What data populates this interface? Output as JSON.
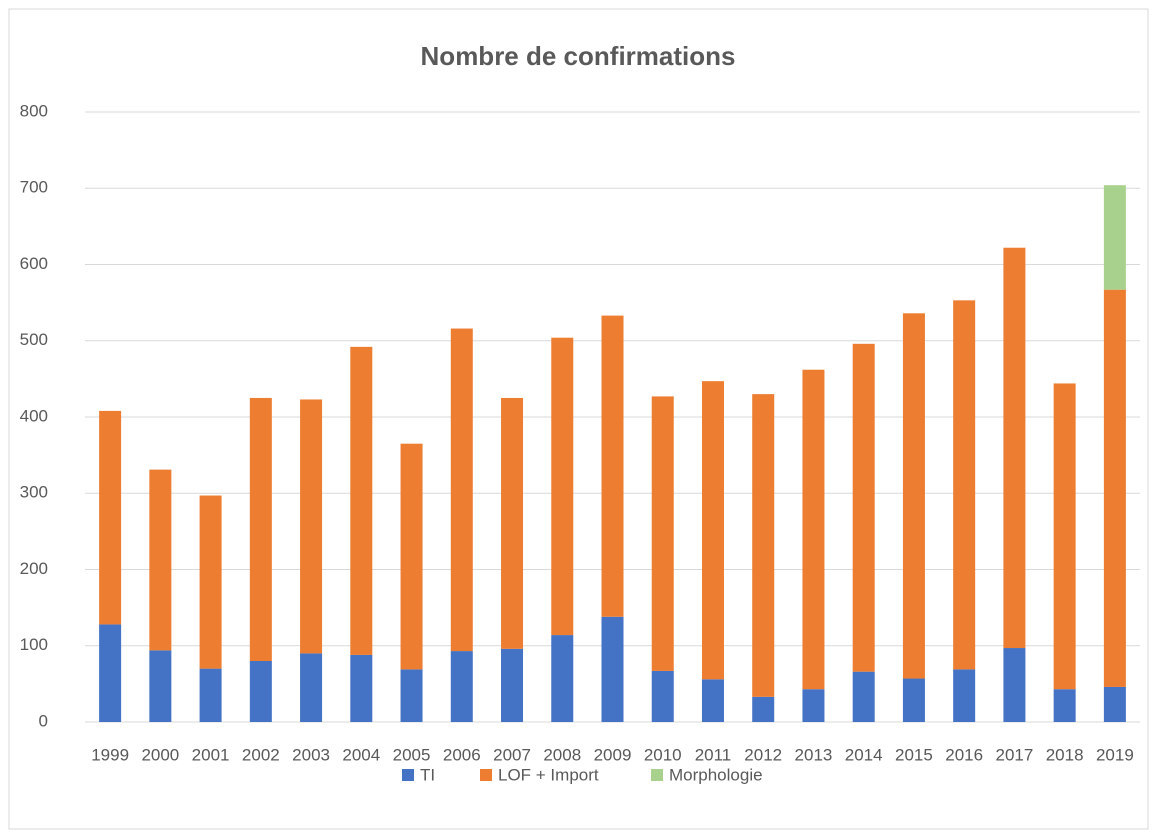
{
  "chart_data": {
    "type": "stacked_bar",
    "title": "Nombre de confirmations",
    "categories": [
      "1999",
      "2000",
      "2001",
      "2002",
      "2003",
      "2004",
      "2005",
      "2006",
      "2007",
      "2008",
      "2009",
      "2010",
      "2011",
      "2012",
      "2013",
      "2014",
      "2015",
      "2016",
      "2017",
      "2018",
      "2019"
    ],
    "series": [
      {
        "name": "TI",
        "color": "#4472c4",
        "values": [
          128,
          94,
          70,
          80,
          90,
          88,
          69,
          93,
          96,
          114,
          138,
          67,
          56,
          33,
          43,
          66,
          57,
          69,
          97,
          43,
          46
        ]
      },
      {
        "name": "LOF + Import",
        "color": "#ed7d31",
        "values": [
          280,
          237,
          227,
          345,
          333,
          404,
          296,
          423,
          329,
          390,
          395,
          360,
          391,
          397,
          419,
          430,
          479,
          484,
          525,
          401,
          521
        ]
      },
      {
        "name": "Morphologie",
        "color": "#a9d18e",
        "values": [
          null,
          null,
          null,
          null,
          null,
          null,
          null,
          null,
          null,
          null,
          null,
          null,
          null,
          null,
          null,
          null,
          null,
          null,
          null,
          null,
          137
        ]
      }
    ],
    "ylim": [
      0,
      800
    ],
    "yticks": [
      0,
      100,
      200,
      300,
      400,
      500,
      600,
      700,
      800
    ],
    "grid": true,
    "legend": "bottom"
  }
}
